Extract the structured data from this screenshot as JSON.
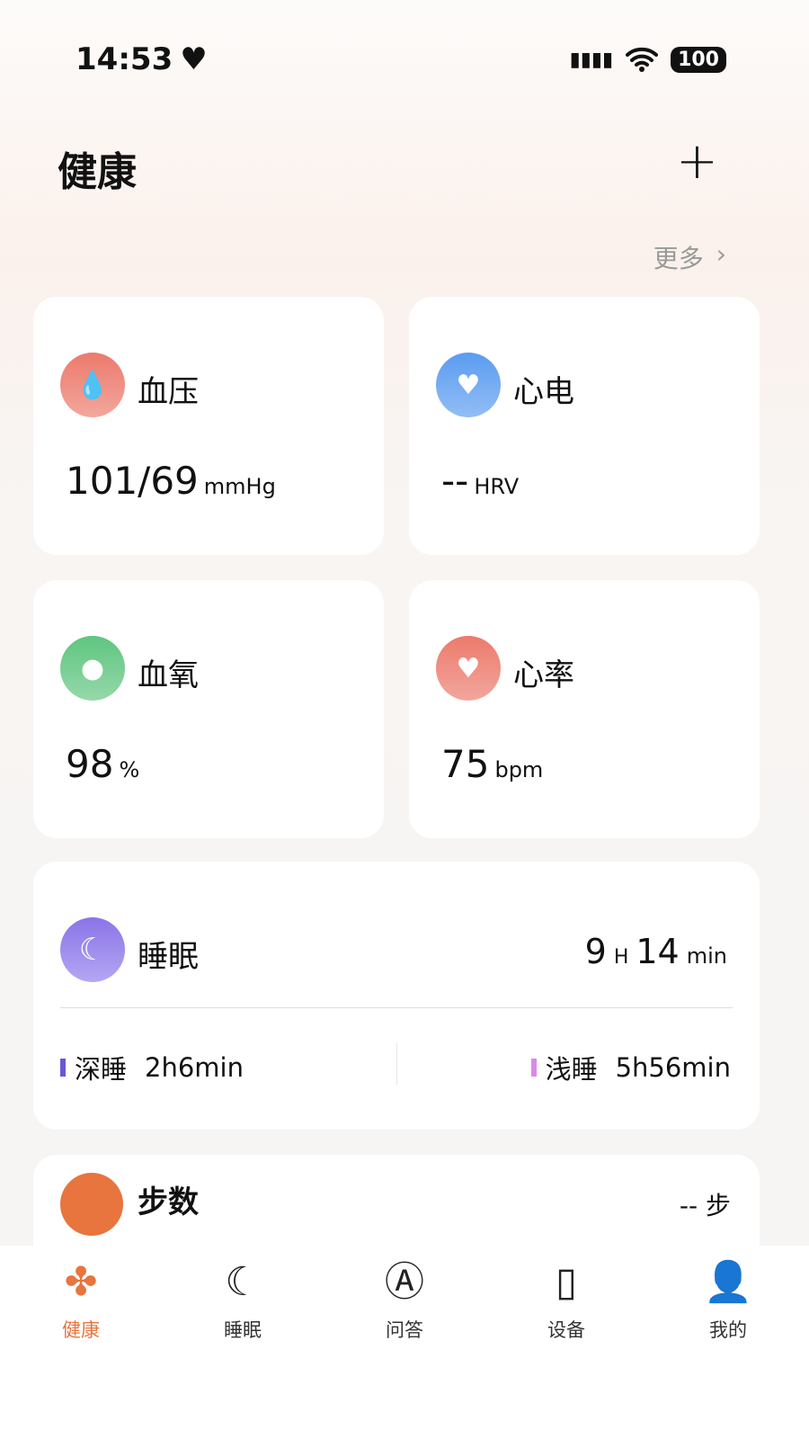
{
  "status": {
    "time": "14:53",
    "battery": "100"
  },
  "header": {
    "title": "健康",
    "more_label": "更多"
  },
  "cards": [
    {
      "title": "血压",
      "value": "101/69",
      "unit": "mmHg",
      "icon": "blood-drop-icon",
      "color": "#ec7a6c"
    },
    {
      "title": "心电",
      "value": "--",
      "unit": "HRV",
      "icon": "ecg-heart-icon",
      "color": "#5b9cf0"
    },
    {
      "title": "血氧",
      "value": "98",
      "unit": "%",
      "icon": "oxygen-drop-icon",
      "color": "#5fc57f"
    },
    {
      "title": "心率",
      "value": "75",
      "unit": "bpm",
      "icon": "heart-rate-icon",
      "color": "#ec7a6c"
    }
  ],
  "sleep": {
    "title": "睡眠",
    "hours": "9",
    "h_unit": "H",
    "minutes": "14",
    "m_unit": "min",
    "deep_label": "深睡",
    "deep_value": "2h6min",
    "light_label": "浅睡",
    "light_value": "5h56min",
    "deep_color": "#6b55d6",
    "light_color": "#d98ae6"
  },
  "steps": {
    "title": "步数",
    "value": "--",
    "unit": "步"
  },
  "nav": [
    {
      "label": "健康",
      "icon": "clover-icon"
    },
    {
      "label": "睡眠",
      "icon": "moon-icon"
    },
    {
      "label": "问答",
      "icon": "ai-chat-icon"
    },
    {
      "label": "设备",
      "icon": "watch-icon"
    },
    {
      "label": "我的",
      "icon": "user-icon"
    }
  ]
}
